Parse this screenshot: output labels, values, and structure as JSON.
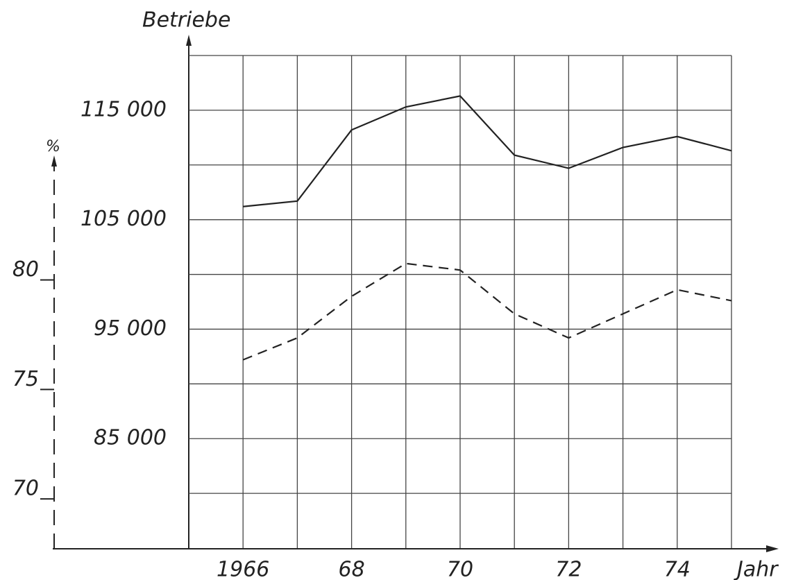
{
  "chart_data": {
    "type": "line",
    "ylabel": "Betriebe",
    "y2label": "%",
    "xlabel": "Jahr",
    "x": [
      1966,
      1967,
      1968,
      1969,
      1970,
      1971,
      1972,
      1973,
      1974,
      1975
    ],
    "series": [
      {
        "color": "#222222",
        "dash": "solid",
        "values": [
          106200,
          106700,
          113200,
          115300,
          116300,
          110900,
          109700,
          111600,
          112600,
          111300
        ]
      },
      {
        "color": "#222222",
        "dash": "dashed",
        "axis": "y2",
        "values": [
          76.1,
          77.1,
          79.0,
          80.5,
          80.2,
          78.2,
          77.1,
          78.2,
          79.3,
          78.8
        ]
      }
    ],
    "xlim": [
      1965,
      1975
    ],
    "xticks": [
      1966,
      {
        "value": 1968,
        "label": "68"
      },
      {
        "value": 1970,
        "label": "70"
      },
      {
        "value": 1972,
        "label": "72"
      },
      {
        "value": 1974,
        "label": "74"
      }
    ],
    "xgrid": [
      1966,
      1967,
      1968,
      1969,
      1970,
      1971,
      1972,
      1973,
      1974,
      1975
    ],
    "ylim": [
      75000,
      120000
    ],
    "yticks": [
      {
        "value": 85000,
        "label": "85 000"
      },
      {
        "value": 95000,
        "label": "95 000"
      },
      {
        "value": 105000,
        "label": "105 000"
      },
      {
        "value": 115000,
        "label": "115 000"
      }
    ],
    "ygrid": [
      80000,
      85000,
      90000,
      95000,
      100000,
      105000,
      110000,
      115000,
      120000
    ],
    "y2lim": [
      67.5,
      90
    ],
    "y2ticks": [
      70,
      75,
      80
    ],
    "grid": true
  }
}
